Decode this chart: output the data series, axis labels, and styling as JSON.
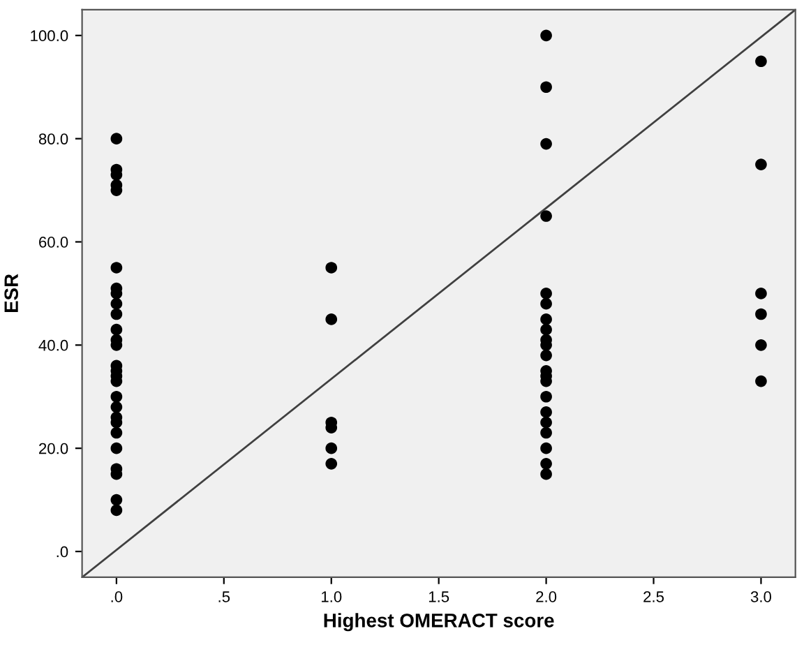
{
  "chart_data": {
    "type": "scatter",
    "xlabel": "Highest OMERACT score",
    "ylabel": "ESR",
    "xlim": [
      -0.16,
      3.16
    ],
    "ylim": [
      -5,
      105
    ],
    "xticks": [
      {
        "value": 0,
        "label": ".0"
      },
      {
        "value": 0.5,
        "label": ".5"
      },
      {
        "value": 1,
        "label": "1.0"
      },
      {
        "value": 1.5,
        "label": "1.5"
      },
      {
        "value": 2,
        "label": "2.0"
      },
      {
        "value": 2.5,
        "label": "2.5"
      },
      {
        "value": 3,
        "label": "3.0"
      }
    ],
    "yticks": [
      {
        "value": 0,
        "label": ".0"
      },
      {
        "value": 20,
        "label": "20.0"
      },
      {
        "value": 40,
        "label": "40.0"
      },
      {
        "value": 60,
        "label": "60.0"
      },
      {
        "value": 80,
        "label": "80.0"
      },
      {
        "value": 100,
        "label": "100.0"
      }
    ],
    "grid": false,
    "legend": false,
    "marker": "circle",
    "series": [
      {
        "color": "#000000",
        "x": [
          0,
          0,
          0,
          0,
          0,
          0,
          0,
          0,
          0,
          0,
          0,
          0,
          0,
          0,
          0,
          0,
          0,
          0,
          0,
          0,
          0,
          0,
          0,
          0,
          0,
          0,
          0,
          1,
          1,
          1,
          1,
          1,
          1,
          2,
          2,
          2,
          2,
          2,
          2,
          2,
          2,
          2,
          2,
          2,
          2,
          2,
          2,
          2,
          2,
          2,
          2,
          2,
          2,
          2,
          3,
          3,
          3,
          3,
          3,
          3
        ],
        "values": [
          80,
          74,
          73,
          71,
          70,
          55,
          51,
          50,
          48,
          46,
          43,
          41,
          40,
          36,
          35,
          34,
          33,
          30,
          28,
          26,
          25,
          23,
          20,
          16,
          15,
          10,
          8,
          55,
          45,
          25,
          24,
          20,
          17,
          100,
          90,
          79,
          65,
          50,
          48,
          45,
          43,
          41,
          40,
          38,
          35,
          34,
          33,
          30,
          27,
          25,
          23,
          20,
          17,
          15,
          95,
          75,
          50,
          46,
          40,
          33
        ]
      },
      {
        "type": "line",
        "color": "#404040",
        "x": [
          -0.16,
          3.16
        ],
        "values": [
          -5,
          105
        ],
        "marker": "none",
        "line_style": "solid"
      }
    ]
  }
}
